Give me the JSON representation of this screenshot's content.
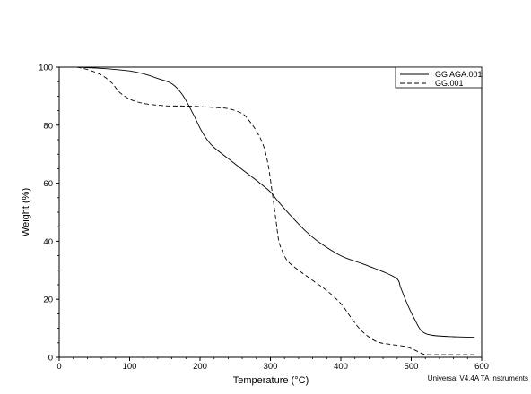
{
  "chart_data": {
    "type": "line",
    "title": "",
    "xlabel": "Temperature (°C)",
    "ylabel": "Weight (%)",
    "xlim": [
      0,
      600
    ],
    "ylim": [
      0,
      100
    ],
    "xticks": [
      0,
      100,
      200,
      300,
      400,
      500,
      600
    ],
    "yticks": [
      0,
      20,
      40,
      60,
      80,
      100
    ],
    "grid": false,
    "legend_position": "top-right",
    "series": [
      {
        "name": "GG AGA.001",
        "style": "solid",
        "color": "#000000",
        "x": [
          25,
          50,
          80,
          100,
          120,
          140,
          160,
          175,
          190,
          200,
          210,
          220,
          240,
          260,
          280,
          300,
          310,
          330,
          350,
          370,
          400,
          430,
          460,
          480,
          485,
          495,
          505,
          515,
          530,
          560,
          590
        ],
        "y": [
          100,
          99.7,
          99.2,
          98.7,
          97.7,
          96.1,
          94.3,
          90.5,
          84.0,
          79.0,
          75.0,
          72.3,
          68.5,
          64.7,
          61.0,
          57.0,
          54.0,
          48.5,
          43.5,
          39.5,
          35.0,
          32.3,
          29.5,
          27.0,
          24.0,
          18.0,
          13.0,
          9.0,
          7.6,
          7.1,
          6.9
        ]
      },
      {
        "name": "GG.001",
        "style": "dashed",
        "color": "#000000",
        "x": [
          25,
          40,
          60,
          75,
          85,
          100,
          120,
          150,
          180,
          200,
          220,
          240,
          260,
          270,
          280,
          290,
          297,
          303,
          308,
          312,
          318,
          325,
          340,
          360,
          380,
          400,
          415,
          430,
          450,
          470,
          490,
          505,
          515,
          520,
          530,
          560,
          590
        ],
        "y": [
          100,
          99.2,
          97.3,
          94.5,
          91.5,
          89.0,
          87.5,
          86.7,
          86.6,
          86.4,
          86.1,
          85.7,
          84.0,
          81.5,
          78.0,
          73.0,
          66.0,
          56.0,
          47.0,
          40.0,
          36.0,
          33.0,
          30.0,
          26.5,
          23.0,
          18.5,
          13.5,
          9.0,
          5.5,
          4.5,
          3.8,
          2.5,
          1.3,
          1.0,
          0.9,
          0.9,
          0.9
        ]
      }
    ]
  },
  "footer_text": "Universal V4.4A TA Instruments"
}
